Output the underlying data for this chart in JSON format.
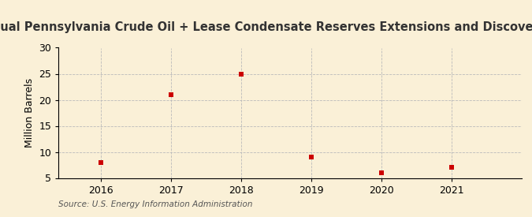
{
  "title": "Annual Pennsylvania Crude Oil + Lease Condensate Reserves Extensions and Discoveries",
  "ylabel": "Million Barrels",
  "source": "Source: U.S. Energy Information Administration",
  "years": [
    2016,
    2017,
    2018,
    2019,
    2020,
    2021
  ],
  "values": [
    8.0,
    21.0,
    25.0,
    9.0,
    6.0,
    7.0
  ],
  "marker_color": "#cc0000",
  "marker_size": 5,
  "background_color": "#faf0d7",
  "grid_color": "#bbbbbb",
  "ylim": [
    5,
    30
  ],
  "yticks": [
    5,
    10,
    15,
    20,
    25,
    30
  ],
  "xlim": [
    2015.4,
    2022.0
  ],
  "title_fontsize": 10.5,
  "label_fontsize": 9,
  "tick_fontsize": 9,
  "source_fontsize": 7.5
}
